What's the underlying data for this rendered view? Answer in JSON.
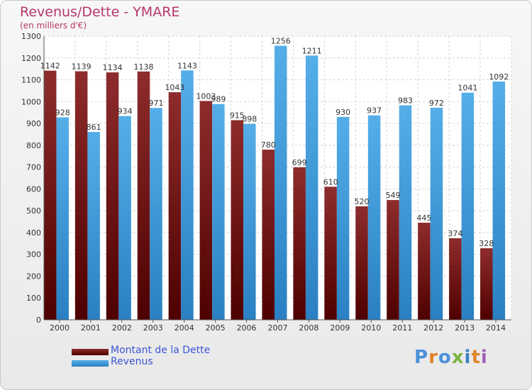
{
  "chart_data": {
    "type": "bar",
    "title": "Revenus/Dette - YMARE",
    "subtitle": "(en milliers d'€)",
    "categories": [
      "2000",
      "2001",
      "2002",
      "2003",
      "2004",
      "2005",
      "2006",
      "2007",
      "2008",
      "2009",
      "2010",
      "2011",
      "2012",
      "2013",
      "2014"
    ],
    "series": [
      {
        "name": "Montant de la Dette",
        "color": "#7a1f1f",
        "values": [
          1142,
          1139,
          1134,
          1138,
          1043,
          1003,
          915,
          780,
          699,
          610,
          520,
          549,
          445,
          374,
          328
        ]
      },
      {
        "name": "Revenus",
        "color": "#4aa0e0",
        "values": [
          928,
          861,
          934,
          971,
          1143,
          989,
          898,
          1256,
          1211,
          930,
          937,
          983,
          972,
          1041,
          1092
        ]
      }
    ],
    "ylim": [
      0,
      1300
    ],
    "yticks": [
      0,
      100,
      200,
      300,
      400,
      500,
      600,
      700,
      800,
      900,
      1000,
      1100,
      1200,
      1300
    ],
    "grid": true,
    "legend_position": "bottom-left"
  },
  "logo": {
    "text": "Proxiti",
    "colors": [
      "#4a90d9",
      "#e0832a",
      "#4a90d9",
      "#7cb342",
      "#3b7fc4",
      "#e0832a",
      "#9c5fb5"
    ]
  }
}
